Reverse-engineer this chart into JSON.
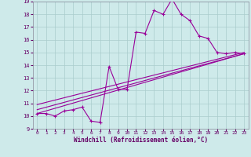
{
  "xlabel": "Windchill (Refroidissement éolien,°C)",
  "bg_color": "#ceeaea",
  "grid_color": "#aacccc",
  "line_color": "#990099",
  "xlim": [
    -0.5,
    23.5
  ],
  "ylim": [
    9,
    19
  ],
  "xticks": [
    0,
    1,
    2,
    3,
    4,
    5,
    6,
    7,
    8,
    9,
    10,
    11,
    12,
    13,
    14,
    15,
    16,
    17,
    18,
    19,
    20,
    21,
    22,
    23
  ],
  "yticks": [
    9,
    10,
    11,
    12,
    13,
    14,
    15,
    16,
    17,
    18,
    19
  ],
  "line1_x": [
    0,
    1,
    2,
    3,
    4,
    5,
    6,
    7,
    8,
    9,
    10,
    11,
    12,
    13,
    14,
    15,
    16,
    17,
    18,
    19,
    20,
    21,
    22,
    23
  ],
  "line1_y": [
    10.2,
    10.2,
    10.0,
    10.4,
    10.5,
    10.7,
    9.6,
    9.5,
    13.9,
    12.1,
    12.1,
    16.6,
    16.5,
    18.3,
    18.0,
    19.2,
    18.0,
    17.5,
    16.3,
    16.1,
    15.0,
    14.9,
    15.0,
    14.9
  ],
  "line2_x": [
    0,
    23
  ],
  "line2_y": [
    10.2,
    14.9
  ],
  "line3_x": [
    0,
    23
  ],
  "line3_y": [
    10.5,
    14.9
  ],
  "line4_x": [
    0,
    23
  ],
  "line4_y": [
    10.9,
    15.0
  ]
}
